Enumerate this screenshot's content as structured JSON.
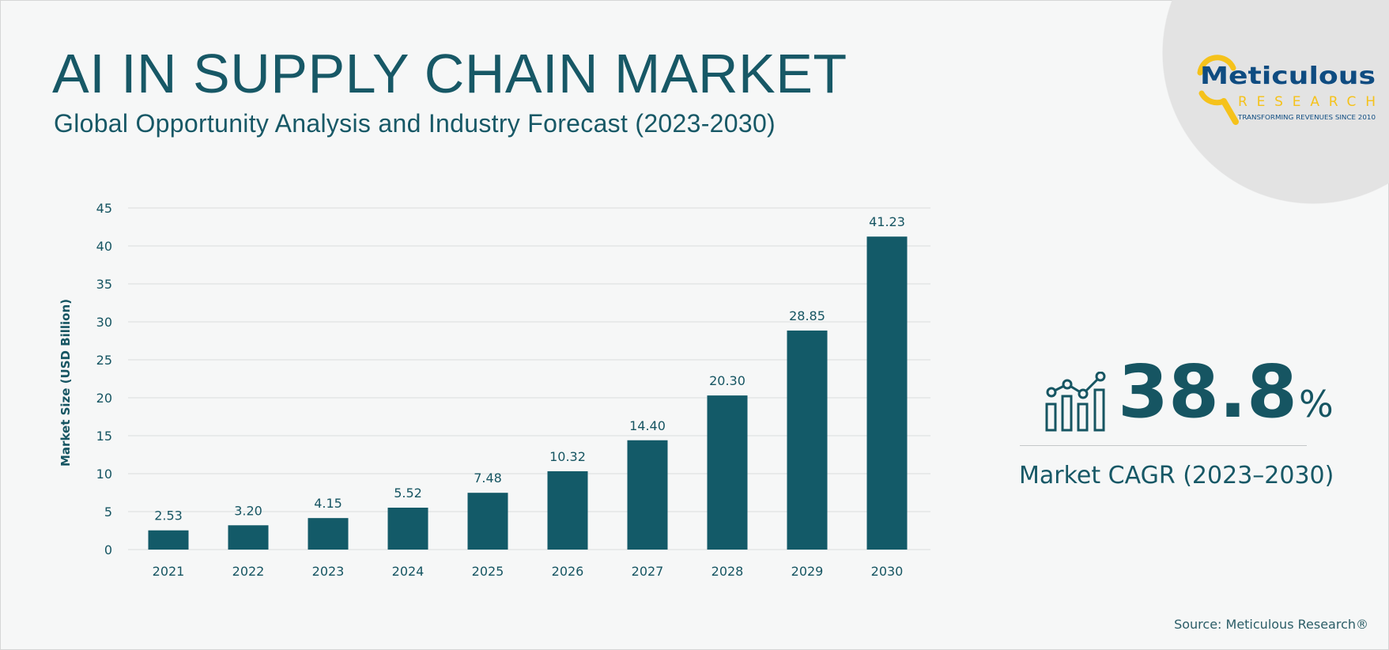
{
  "header": {
    "title": "AI IN SUPPLY CHAIN MARKET",
    "subtitle": "Global Opportunity Analysis and Industry Forecast (2023-2030)"
  },
  "logo": {
    "name": "Meticulous",
    "sub": "RESEARCH",
    "tagline": "TRANSFORMING REVENUES SINCE 2010",
    "colors": {
      "primary": "#0f4c81",
      "accent": "#f5c21b"
    }
  },
  "cagr": {
    "value": "38.8",
    "unit": "%",
    "label": "Market CAGR (2023–2030)",
    "icon": "growth-chart-icon"
  },
  "source": "Source: Meticulous Research®",
  "colors": {
    "bar": "#135a68",
    "text": "#165562",
    "background": "#f6f7f7",
    "grid": "#d9dcdd",
    "circle": "#e3e3e3"
  },
  "chart_data": {
    "type": "bar",
    "title": "",
    "xlabel": "",
    "ylabel": "Market Size (USD Billion)",
    "categories": [
      "2021",
      "2022",
      "2023",
      "2024",
      "2025",
      "2026",
      "2027",
      "2028",
      "2029",
      "2030"
    ],
    "values": [
      2.53,
      3.2,
      4.15,
      5.52,
      7.48,
      10.32,
      14.4,
      20.3,
      28.85,
      41.23
    ],
    "value_labels": [
      "2.53",
      "3.20",
      "4.15",
      "5.52",
      "7.48",
      "10.32",
      "14.40",
      "20.30",
      "28.85",
      "41.23"
    ],
    "ylim": [
      0,
      45
    ],
    "yticks": [
      0,
      5,
      10,
      15,
      20,
      25,
      30,
      35,
      40,
      45
    ],
    "grid": true,
    "legend": "none"
  }
}
